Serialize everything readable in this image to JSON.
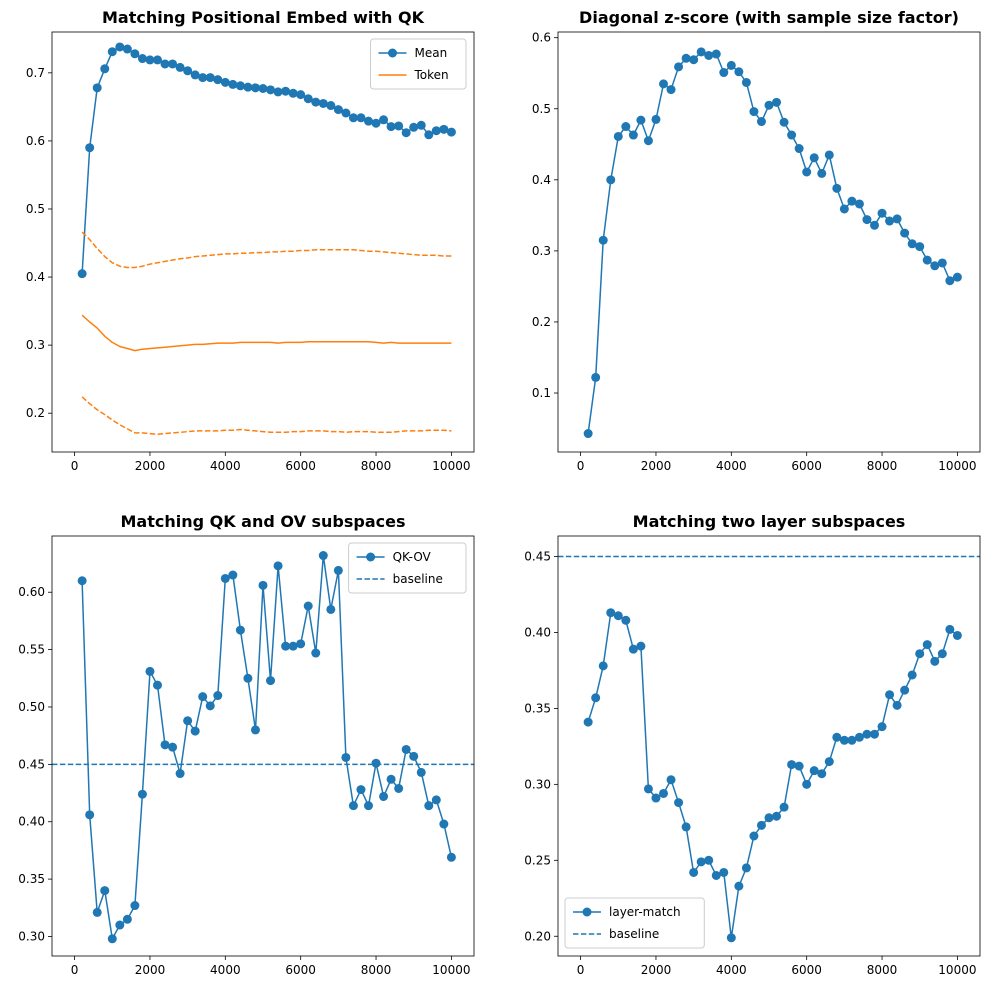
{
  "chart_data": [
    {
      "type": "line",
      "title": "Matching Positional Embed with QK",
      "xlabel": "",
      "ylabel": "",
      "xlim": [
        -600,
        10600
      ],
      "ylim": [
        0.143,
        0.76
      ],
      "xticks": [
        0,
        2000,
        4000,
        6000,
        8000,
        10000
      ],
      "yticks": [
        0.2,
        0.3,
        0.4,
        0.5,
        0.6,
        0.7
      ],
      "grid": false,
      "legend_position": "upper right",
      "x": [
        200,
        400,
        600,
        800,
        1000,
        1200,
        1400,
        1600,
        1800,
        2000,
        2200,
        2400,
        2600,
        2800,
        3000,
        3200,
        3400,
        3600,
        3800,
        4000,
        4200,
        4400,
        4600,
        4800,
        5000,
        5200,
        5400,
        5600,
        5800,
        6000,
        6200,
        6400,
        6600,
        6800,
        7000,
        7200,
        7400,
        7600,
        7800,
        8000,
        8200,
        8400,
        8600,
        8800,
        9000,
        9200,
        9400,
        9600,
        9800,
        10000
      ],
      "series": [
        {
          "name": "Mean",
          "style": "line-marker",
          "color": "#1f77b4",
          "values": [
            0.405,
            0.59,
            0.678,
            0.706,
            0.731,
            0.738,
            0.735,
            0.728,
            0.721,
            0.719,
            0.719,
            0.713,
            0.713,
            0.708,
            0.703,
            0.697,
            0.693,
            0.693,
            0.69,
            0.686,
            0.683,
            0.681,
            0.679,
            0.678,
            0.677,
            0.675,
            0.672,
            0.673,
            0.67,
            0.668,
            0.662,
            0.657,
            0.655,
            0.652,
            0.646,
            0.641,
            0.634,
            0.634,
            0.629,
            0.626,
            0.631,
            0.621,
            0.622,
            0.612,
            0.62,
            0.623,
            0.609,
            0.615,
            0.617,
            0.613
          ]
        },
        {
          "name": "Token",
          "style": "solid",
          "color": "#ff7f0e",
          "values": [
            0.344,
            0.334,
            0.325,
            0.313,
            0.304,
            0.298,
            0.295,
            0.292,
            0.294,
            0.295,
            0.296,
            0.297,
            0.298,
            0.299,
            0.3,
            0.301,
            0.301,
            0.302,
            0.303,
            0.303,
            0.303,
            0.304,
            0.304,
            0.304,
            0.304,
            0.304,
            0.303,
            0.304,
            0.304,
            0.304,
            0.305,
            0.305,
            0.305,
            0.305,
            0.305,
            0.305,
            0.305,
            0.305,
            0.305,
            0.304,
            0.303,
            0.304,
            0.303,
            0.303,
            0.303,
            0.303,
            0.303,
            0.303,
            0.303,
            0.303
          ]
        },
        {
          "name": "",
          "style": "dashed",
          "color": "#ff7f0e",
          "values": [
            0.466,
            0.455,
            0.442,
            0.43,
            0.421,
            0.416,
            0.414,
            0.414,
            0.416,
            0.419,
            0.421,
            0.423,
            0.425,
            0.427,
            0.428,
            0.43,
            0.431,
            0.432,
            0.433,
            0.434,
            0.434,
            0.435,
            0.435,
            0.436,
            0.436,
            0.437,
            0.437,
            0.438,
            0.438,
            0.439,
            0.439,
            0.44,
            0.44,
            0.44,
            0.44,
            0.44,
            0.44,
            0.439,
            0.438,
            0.438,
            0.437,
            0.436,
            0.435,
            0.434,
            0.433,
            0.432,
            0.432,
            0.432,
            0.431,
            0.431
          ]
        },
        {
          "name": "",
          "style": "dashed",
          "color": "#ff7f0e",
          "values": [
            0.224,
            0.214,
            0.205,
            0.198,
            0.19,
            0.183,
            0.177,
            0.171,
            0.171,
            0.17,
            0.169,
            0.17,
            0.171,
            0.172,
            0.173,
            0.174,
            0.174,
            0.174,
            0.174,
            0.175,
            0.175,
            0.176,
            0.175,
            0.174,
            0.173,
            0.172,
            0.172,
            0.172,
            0.173,
            0.173,
            0.174,
            0.174,
            0.174,
            0.173,
            0.173,
            0.172,
            0.173,
            0.173,
            0.173,
            0.172,
            0.172,
            0.172,
            0.173,
            0.174,
            0.174,
            0.174,
            0.175,
            0.175,
            0.175,
            0.174
          ]
        }
      ]
    },
    {
      "type": "line",
      "title": "Diagonal z-score (with sample size factor)",
      "xlabel": "",
      "ylabel": "",
      "xlim": [
        -600,
        10600
      ],
      "ylim": [
        0.017,
        0.608
      ],
      "xticks": [
        0,
        2000,
        4000,
        6000,
        8000,
        10000
      ],
      "yticks": [
        0.1,
        0.2,
        0.3,
        0.4,
        0.5,
        0.6
      ],
      "grid": false,
      "legend_position": "none",
      "x": [
        200,
        400,
        600,
        800,
        1000,
        1200,
        1400,
        1600,
        1800,
        2000,
        2200,
        2400,
        2600,
        2800,
        3000,
        3200,
        3400,
        3600,
        3800,
        4000,
        4200,
        4400,
        4600,
        4800,
        5000,
        5200,
        5400,
        5600,
        5800,
        6000,
        6200,
        6400,
        6600,
        6800,
        7000,
        7200,
        7400,
        7600,
        7800,
        8000,
        8200,
        8400,
        8600,
        8800,
        9000,
        9200,
        9400,
        9600,
        9800,
        10000
      ],
      "series": [
        {
          "name": "",
          "style": "line-marker",
          "color": "#1f77b4",
          "values": [
            0.043,
            0.122,
            0.315,
            0.4,
            0.461,
            0.475,
            0.463,
            0.484,
            0.455,
            0.485,
            0.535,
            0.527,
            0.559,
            0.571,
            0.569,
            0.58,
            0.575,
            0.577,
            0.551,
            0.561,
            0.552,
            0.537,
            0.496,
            0.482,
            0.505,
            0.509,
            0.481,
            0.463,
            0.444,
            0.411,
            0.431,
            0.409,
            0.435,
            0.388,
            0.359,
            0.37,
            0.366,
            0.344,
            0.336,
            0.353,
            0.342,
            0.345,
            0.325,
            0.31,
            0.306,
            0.287,
            0.279,
            0.283,
            0.258,
            0.263
          ]
        }
      ]
    },
    {
      "type": "line",
      "title": "Matching QK and OV subspaces",
      "xlabel": "",
      "ylabel": "",
      "xlim": [
        -600,
        10600
      ],
      "ylim": [
        0.283,
        0.649
      ],
      "xticks": [
        0,
        2000,
        4000,
        6000,
        8000,
        10000
      ],
      "yticks": [
        0.3,
        0.35,
        0.4,
        0.45,
        0.5,
        0.55,
        0.6
      ],
      "grid": false,
      "legend_position": "upper right",
      "x": [
        200,
        400,
        600,
        800,
        1000,
        1200,
        1400,
        1600,
        1800,
        2000,
        2200,
        2400,
        2600,
        2800,
        3000,
        3200,
        3400,
        3600,
        3800,
        4000,
        4200,
        4400,
        4600,
        4800,
        5000,
        5200,
        5400,
        5600,
        5800,
        6000,
        6200,
        6400,
        6600,
        6800,
        7000,
        7200,
        7400,
        7600,
        7800,
        8000,
        8200,
        8400,
        8600,
        8800,
        9000,
        9200,
        9400,
        9600,
        9800,
        10000
      ],
      "series": [
        {
          "name": "QK-OV",
          "style": "line-marker",
          "color": "#1f77b4",
          "values": [
            0.61,
            0.406,
            0.321,
            0.34,
            0.298,
            0.31,
            0.315,
            0.327,
            0.424,
            0.531,
            0.519,
            0.467,
            0.465,
            0.442,
            0.488,
            0.479,
            0.509,
            0.501,
            0.51,
            0.612,
            0.615,
            0.567,
            0.525,
            0.48,
            0.606,
            0.523,
            0.623,
            0.553,
            0.553,
            0.555,
            0.588,
            0.547,
            0.632,
            0.585,
            0.619,
            0.456,
            0.414,
            0.428,
            0.414,
            0.451,
            0.422,
            0.437,
            0.429,
            0.463,
            0.457,
            0.443,
            0.414,
            0.419,
            0.398,
            0.369
          ]
        },
        {
          "name": "baseline",
          "style": "hline-dashed",
          "color": "#1f77b4",
          "value": 0.45
        }
      ]
    },
    {
      "type": "line",
      "title": "Matching two layer subspaces",
      "xlabel": "",
      "ylabel": "",
      "xlim": [
        -600,
        10600
      ],
      "ylim": [
        0.187,
        0.4635
      ],
      "xticks": [
        0,
        2000,
        4000,
        6000,
        8000,
        10000
      ],
      "yticks": [
        0.2,
        0.25,
        0.3,
        0.35,
        0.4,
        0.45
      ],
      "grid": false,
      "legend_position": "lower left",
      "x": [
        200,
        400,
        600,
        800,
        1000,
        1200,
        1400,
        1600,
        1800,
        2000,
        2200,
        2400,
        2600,
        2800,
        3000,
        3200,
        3400,
        3600,
        3800,
        4000,
        4200,
        4400,
        4600,
        4800,
        5000,
        5200,
        5400,
        5600,
        5800,
        6000,
        6200,
        6400,
        6600,
        6800,
        7000,
        7200,
        7400,
        7600,
        7800,
        8000,
        8200,
        8400,
        8600,
        8800,
        9000,
        9200,
        9400,
        9600,
        9800,
        10000
      ],
      "series": [
        {
          "name": "layer-match",
          "style": "line-marker",
          "color": "#1f77b4",
          "values": [
            0.341,
            0.357,
            0.378,
            0.413,
            0.411,
            0.408,
            0.389,
            0.391,
            0.297,
            0.291,
            0.294,
            0.303,
            0.288,
            0.272,
            0.242,
            0.249,
            0.25,
            0.24,
            0.242,
            0.199,
            0.233,
            0.245,
            0.266,
            0.273,
            0.278,
            0.279,
            0.285,
            0.313,
            0.312,
            0.3,
            0.309,
            0.307,
            0.315,
            0.331,
            0.329,
            0.329,
            0.331,
            0.333,
            0.333,
            0.338,
            0.359,
            0.352,
            0.362,
            0.372,
            0.386,
            0.392,
            0.381,
            0.386,
            0.402,
            0.398
          ]
        },
        {
          "name": "baseline",
          "style": "hline-dashed",
          "color": "#1f77b4",
          "value": 0.45
        }
      ]
    }
  ]
}
